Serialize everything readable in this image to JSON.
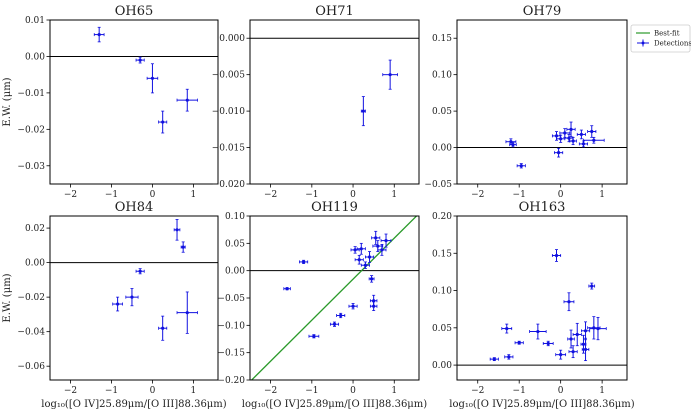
{
  "chart_data": {
    "figure": {
      "shared_xlabel": "log₁₀([O IV]25.89μm/[O III]88.36μm)",
      "shared_ylabel": "E.W. (μm)",
      "legend": {
        "placement": "top-right",
        "entries": [
          "Best-fit",
          "Detections"
        ]
      },
      "colors": {
        "points": "#1010e0",
        "fit": "#2a9a2a",
        "zero_line": "#000000",
        "axes": "#000000"
      }
    },
    "panels": [
      {
        "type": "scatter",
        "title": "OH65",
        "xlim": [
          -2.5,
          1.6
        ],
        "ylim": [
          -0.035,
          0.01
        ],
        "xticks": [
          -2,
          -1,
          0,
          1
        ],
        "xtick_labels": [
          "−2",
          "−1",
          "0",
          "1"
        ],
        "yticks": [
          0.01,
          0.0,
          -0.01,
          -0.02,
          -0.03
        ],
        "ytick_labels": [
          "0.01",
          "0.00",
          "−0.01",
          "−0.02",
          "−0.03"
        ],
        "show_xlabel": false,
        "show_ylabel": true,
        "points": [
          {
            "x": -1.3,
            "y": 0.006,
            "xerr": 0.12,
            "yerr": 0.002
          },
          {
            "x": -0.3,
            "y": -0.001,
            "xerr": 0.1,
            "yerr": 0.0008
          },
          {
            "x": 0.0,
            "y": -0.006,
            "xerr": 0.13,
            "yerr": 0.004
          },
          {
            "x": 0.25,
            "y": -0.018,
            "xerr": 0.1,
            "yerr": 0.003
          },
          {
            "x": 0.85,
            "y": -0.012,
            "xerr": 0.25,
            "yerr": 0.003
          }
        ],
        "fit": null
      },
      {
        "type": "scatter",
        "title": "OH71",
        "xlim": [
          -2.5,
          1.6
        ],
        "ylim": [
          -0.02,
          0.0025
        ],
        "xticks": [
          -2,
          -1,
          0,
          1
        ],
        "xtick_labels": [
          "−2",
          "−1",
          "0",
          "1"
        ],
        "yticks": [
          0.0,
          -0.005,
          -0.01,
          -0.015,
          -0.02
        ],
        "ytick_labels": [
          "0.000",
          "−0.005",
          "−0.010",
          "−0.015",
          "−0.020"
        ],
        "show_xlabel": false,
        "show_ylabel": false,
        "points": [
          {
            "x": 0.25,
            "y": -0.01,
            "xerr": 0.05,
            "yerr": 0.002
          },
          {
            "x": 0.9,
            "y": -0.005,
            "xerr": 0.18,
            "yerr": 0.002
          }
        ],
        "fit": null
      },
      {
        "type": "scatter",
        "title": "OH79",
        "xlim": [
          -2.5,
          1.6
        ],
        "ylim": [
          -0.05,
          0.175
        ],
        "xticks": [
          -2,
          -1,
          0,
          1
        ],
        "xtick_labels": [
          "−2",
          "−1",
          "0",
          "1"
        ],
        "yticks": [
          0.15,
          0.1,
          0.05,
          0.0,
          -0.05
        ],
        "ytick_labels": [
          "0.15",
          "0.10",
          "0.05",
          "0.00",
          "−0.05"
        ],
        "show_xlabel": false,
        "show_ylabel": false,
        "points": [
          {
            "x": -1.2,
            "y": 0.008,
            "xerr": 0.12,
            "yerr": 0.004
          },
          {
            "x": -1.15,
            "y": 0.004,
            "xerr": 0.08,
            "yerr": 0.003
          },
          {
            "x": -0.95,
            "y": -0.025,
            "xerr": 0.1,
            "yerr": 0.003
          },
          {
            "x": -0.1,
            "y": 0.016,
            "xerr": 0.1,
            "yerr": 0.006
          },
          {
            "x": -0.05,
            "y": -0.007,
            "xerr": 0.1,
            "yerr": 0.006
          },
          {
            "x": 0.0,
            "y": 0.012,
            "xerr": 0.1,
            "yerr": 0.005
          },
          {
            "x": 0.1,
            "y": 0.02,
            "xerr": 0.12,
            "yerr": 0.006
          },
          {
            "x": 0.2,
            "y": 0.013,
            "xerr": 0.1,
            "yerr": 0.005
          },
          {
            "x": 0.25,
            "y": 0.025,
            "xerr": 0.1,
            "yerr": 0.01
          },
          {
            "x": 0.3,
            "y": 0.009,
            "xerr": 0.08,
            "yerr": 0.005
          },
          {
            "x": 0.5,
            "y": 0.018,
            "xerr": 0.1,
            "yerr": 0.006
          },
          {
            "x": 0.55,
            "y": 0.005,
            "xerr": 0.1,
            "yerr": 0.004
          },
          {
            "x": 0.75,
            "y": 0.022,
            "xerr": 0.1,
            "yerr": 0.008
          },
          {
            "x": 0.8,
            "y": 0.01,
            "xerr": 0.25,
            "yerr": 0.004
          }
        ],
        "fit": null
      },
      {
        "type": "scatter",
        "title": "OH84",
        "xlim": [
          -2.5,
          1.6
        ],
        "ylim": [
          -0.068,
          0.027
        ],
        "xticks": [
          -2,
          -1,
          0,
          1
        ],
        "xtick_labels": [
          "−2",
          "−1",
          "0",
          "1"
        ],
        "yticks": [
          0.02,
          0.0,
          -0.02,
          -0.04,
          -0.06
        ],
        "ytick_labels": [
          "0.02",
          "0.00",
          "−0.02",
          "−0.04",
          "−0.06"
        ],
        "show_xlabel": true,
        "show_ylabel": true,
        "points": [
          {
            "x": -0.85,
            "y": -0.024,
            "xerr": 0.12,
            "yerr": 0.004
          },
          {
            "x": -0.5,
            "y": -0.02,
            "xerr": 0.15,
            "yerr": 0.005
          },
          {
            "x": -0.3,
            "y": -0.005,
            "xerr": 0.1,
            "yerr": 0.0015
          },
          {
            "x": 0.25,
            "y": -0.038,
            "xerr": 0.1,
            "yerr": 0.007
          },
          {
            "x": 0.6,
            "y": 0.019,
            "xerr": 0.07,
            "yerr": 0.006
          },
          {
            "x": 0.75,
            "y": 0.009,
            "xerr": 0.05,
            "yerr": 0.003
          },
          {
            "x": 0.85,
            "y": -0.029,
            "xerr": 0.25,
            "yerr": 0.012
          }
        ],
        "fit": null
      },
      {
        "type": "scatter",
        "title": "OH119",
        "xlim": [
          -2.5,
          1.6
        ],
        "ylim": [
          -0.2,
          0.1
        ],
        "xticks": [
          -2,
          -1,
          0,
          1
        ],
        "xtick_labels": [
          "−2",
          "−1",
          "0",
          "1"
        ],
        "yticks": [
          0.1,
          0.05,
          0.0,
          -0.05,
          -0.1,
          -0.15,
          -0.2
        ],
        "ytick_labels": [
          "0.10",
          "0.05",
          "0.00",
          "−0.05",
          "−0.10",
          "−0.15",
          "−0.20"
        ],
        "show_xlabel": true,
        "show_ylabel": false,
        "points": [
          {
            "x": -1.6,
            "y": -0.033,
            "xerr": 0.08,
            "yerr": 0.002
          },
          {
            "x": -1.2,
            "y": 0.016,
            "xerr": 0.1,
            "yerr": 0.003
          },
          {
            "x": -0.95,
            "y": -0.12,
            "xerr": 0.12,
            "yerr": 0.003
          },
          {
            "x": -0.45,
            "y": -0.098,
            "xerr": 0.1,
            "yerr": 0.004
          },
          {
            "x": -0.3,
            "y": -0.082,
            "xerr": 0.1,
            "yerr": 0.004
          },
          {
            "x": 0.0,
            "y": -0.065,
            "xerr": 0.1,
            "yerr": 0.005
          },
          {
            "x": 0.05,
            "y": 0.038,
            "xerr": 0.1,
            "yerr": 0.006
          },
          {
            "x": 0.15,
            "y": 0.02,
            "xerr": 0.1,
            "yerr": 0.008
          },
          {
            "x": 0.2,
            "y": 0.04,
            "xerr": 0.1,
            "yerr": 0.01
          },
          {
            "x": 0.3,
            "y": 0.01,
            "xerr": 0.1,
            "yerr": 0.006
          },
          {
            "x": 0.4,
            "y": 0.025,
            "xerr": 0.1,
            "yerr": 0.01
          },
          {
            "x": 0.45,
            "y": -0.015,
            "xerr": 0.06,
            "yerr": 0.006
          },
          {
            "x": 0.5,
            "y": -0.055,
            "xerr": 0.08,
            "yerr": 0.01
          },
          {
            "x": 0.5,
            "y": -0.065,
            "xerr": 0.08,
            "yerr": 0.008
          },
          {
            "x": 0.55,
            "y": 0.06,
            "xerr": 0.1,
            "yerr": 0.012
          },
          {
            "x": 0.6,
            "y": 0.045,
            "xerr": 0.12,
            "yerr": 0.01
          },
          {
            "x": 0.7,
            "y": 0.038,
            "xerr": 0.1,
            "yerr": 0.01
          },
          {
            "x": 0.8,
            "y": 0.055,
            "xerr": 0.12,
            "yerr": 0.012
          }
        ],
        "fit": {
          "slope": 0.075,
          "intercept": -0.0155
        }
      },
      {
        "type": "scatter",
        "title": "OH163",
        "xlim": [
          -2.5,
          1.6
        ],
        "ylim": [
          -0.02,
          0.2
        ],
        "xticks": [
          -2,
          -1,
          0,
          1
        ],
        "xtick_labels": [
          "−2",
          "−1",
          "0",
          "1"
        ],
        "yticks": [
          0.2,
          0.15,
          0.1,
          0.05,
          0.0
        ],
        "ytick_labels": [
          "0.20",
          "0.15",
          "0.10",
          "0.05",
          "0.00"
        ],
        "show_xlabel": true,
        "show_ylabel": false,
        "points": [
          {
            "x": -1.6,
            "y": 0.008,
            "xerr": 0.1,
            "yerr": 0.002
          },
          {
            "x": -1.3,
            "y": 0.049,
            "xerr": 0.12,
            "yerr": 0.006
          },
          {
            "x": -1.25,
            "y": 0.011,
            "xerr": 0.1,
            "yerr": 0.003
          },
          {
            "x": -1.0,
            "y": 0.03,
            "xerr": 0.1,
            "yerr": 0.002
          },
          {
            "x": -0.55,
            "y": 0.045,
            "xerr": 0.2,
            "yerr": 0.01
          },
          {
            "x": -0.3,
            "y": 0.029,
            "xerr": 0.12,
            "yerr": 0.003
          },
          {
            "x": -0.1,
            "y": 0.147,
            "xerr": 0.1,
            "yerr": 0.008
          },
          {
            "x": 0.0,
            "y": 0.014,
            "xerr": 0.12,
            "yerr": 0.006
          },
          {
            "x": 0.2,
            "y": 0.085,
            "xerr": 0.12,
            "yerr": 0.012
          },
          {
            "x": 0.25,
            "y": 0.035,
            "xerr": 0.08,
            "yerr": 0.012
          },
          {
            "x": 0.3,
            "y": 0.018,
            "xerr": 0.1,
            "yerr": 0.008
          },
          {
            "x": 0.4,
            "y": 0.041,
            "xerr": 0.1,
            "yerr": 0.015
          },
          {
            "x": 0.55,
            "y": 0.028,
            "xerr": 0.06,
            "yerr": 0.012
          },
          {
            "x": 0.6,
            "y": 0.021,
            "xerr": 0.08,
            "yerr": 0.015
          },
          {
            "x": 0.6,
            "y": 0.046,
            "xerr": 0.1,
            "yerr": 0.012
          },
          {
            "x": 0.75,
            "y": 0.106,
            "xerr": 0.07,
            "yerr": 0.004
          },
          {
            "x": 0.8,
            "y": 0.05,
            "xerr": 0.15,
            "yerr": 0.015
          },
          {
            "x": 0.9,
            "y": 0.049,
            "xerr": 0.2,
            "yerr": 0.015
          }
        ],
        "fit": null
      }
    ]
  }
}
